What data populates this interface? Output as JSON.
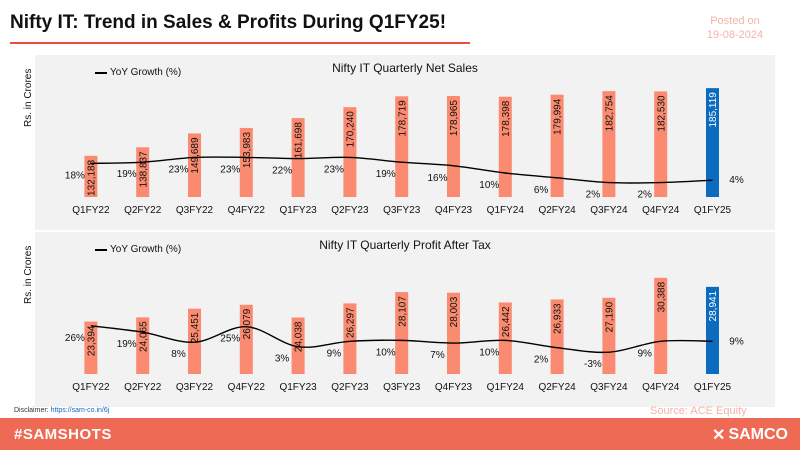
{
  "header": {
    "title": "Nifty IT: Trend in Sales & Profits During Q1FY25!",
    "posted_label": "Posted on",
    "posted_date": "19-08-2024"
  },
  "footer": {
    "disclaimer_label": "Disclaimer:",
    "disclaimer_link": "https://sam-co.in/6j",
    "source": "Source: ACE Equity",
    "hashtag": "#SAMSHOTS",
    "brand": "SAMCO",
    "brand_icon": "samco-logo-icon"
  },
  "colors": {
    "bar": "#fa8a70",
    "bar_highlight": "#0b6bbf",
    "line": "#000000",
    "accent": "#ef6a55"
  },
  "chart_data": [
    {
      "type": "bar",
      "title": "Nifty IT Quarterly Net Sales",
      "ylabel": "Rs. in Crores",
      "categories": [
        "Q1FY22",
        "Q2FY22",
        "Q3FY22",
        "Q4FY22",
        "Q1FY23",
        "Q2FY23",
        "Q3FY23",
        "Q4FY23",
        "Q1FY24",
        "Q2FY24",
        "Q3FY24",
        "Q4FY24",
        "Q1FY25"
      ],
      "series": [
        {
          "values": [
            132188,
            138837,
            149689,
            153983,
            161698,
            170240,
            178719,
            178965,
            178398,
            179994,
            182754,
            182530,
            185119
          ],
          "labels": [
            "132,188",
            "138,837",
            "149,689",
            "153,983",
            "161,698",
            "170,240",
            "178,719",
            "178,965",
            "178,398",
            "179,994",
            "182,754",
            "182,530",
            "185,119"
          ]
        },
        {
          "name": "YoY Growth (%)",
          "type": "line",
          "values": [
            18,
            19,
            23,
            23,
            22,
            23,
            19,
            16,
            10,
            6,
            2,
            2,
            4
          ],
          "labels": [
            "18%",
            "19%",
            "23%",
            "23%",
            "22%",
            "23%",
            "19%",
            "16%",
            "10%",
            "6%",
            "2%",
            "2%",
            "4%"
          ]
        }
      ]
    },
    {
      "type": "bar",
      "title": "Nifty IT Quarterly Profit After Tax",
      "ylabel": "Rs. in Crores",
      "categories": [
        "Q1FY22",
        "Q2FY22",
        "Q3FY22",
        "Q4FY22",
        "Q1FY23",
        "Q2FY23",
        "Q3FY23",
        "Q4FY23",
        "Q1FY24",
        "Q2FY24",
        "Q3FY24",
        "Q4FY24",
        "Q1FY25"
      ],
      "series": [
        {
          "values": [
            23394,
            24065,
            25451,
            26079,
            24038,
            26297,
            28107,
            28003,
            26442,
            26933,
            27190,
            30388,
            28941
          ],
          "labels": [
            "23,394",
            "24,065",
            "25,451",
            "26,079",
            "24,038",
            "26,297",
            "28,107",
            "28,003",
            "26,442",
            "26,933",
            "27,190",
            "30,388",
            "28,941"
          ]
        },
        {
          "name": "YoY Growth (%)",
          "type": "line",
          "values": [
            26,
            19,
            8,
            25,
            3,
            9,
            10,
            7,
            10,
            2,
            -3,
            9,
            9
          ],
          "labels": [
            "26%",
            "19%",
            "8%",
            "25%",
            "3%",
            "9%",
            "10%",
            "7%",
            "10%",
            "2%",
            "-3%",
            "9%",
            "9%"
          ]
        }
      ]
    }
  ]
}
